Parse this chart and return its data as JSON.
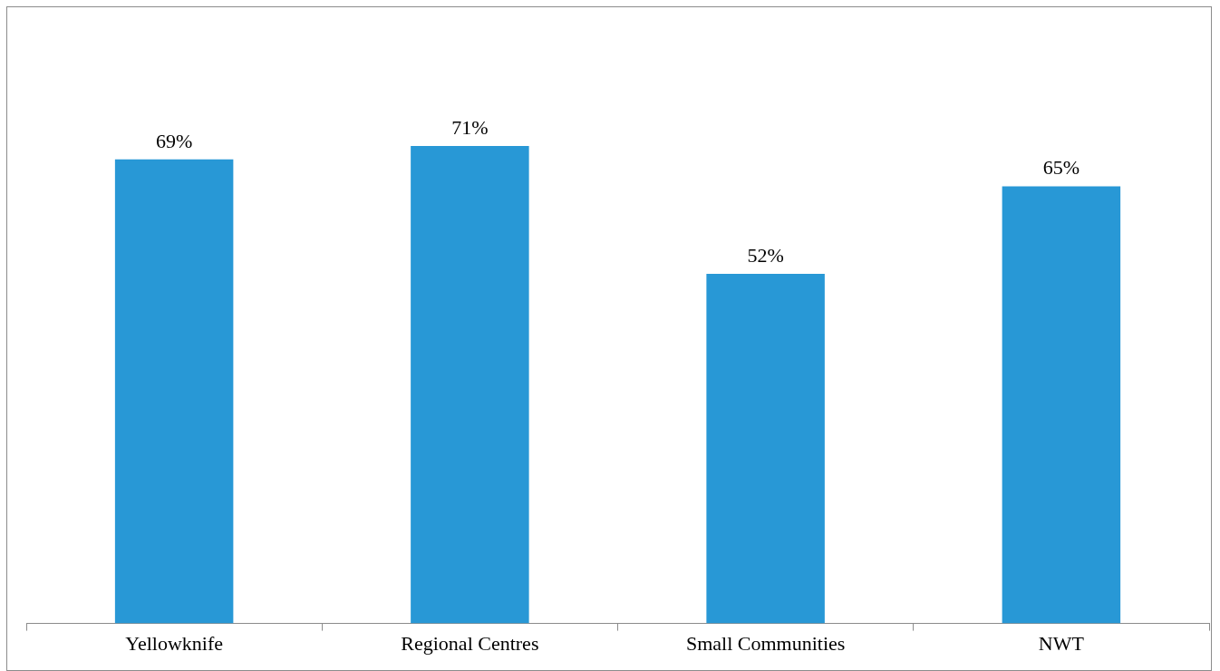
{
  "chart_data": {
    "type": "bar",
    "categories": [
      "Yellowknife",
      "Regional Centres",
      "Small Communities",
      "NWT"
    ],
    "values": [
      69,
      71,
      52,
      65
    ],
    "color": "#2898d6",
    "value_labels": [
      "69%",
      "71%",
      "52%",
      "65%"
    ],
    "grid": false,
    "legend": false
  }
}
